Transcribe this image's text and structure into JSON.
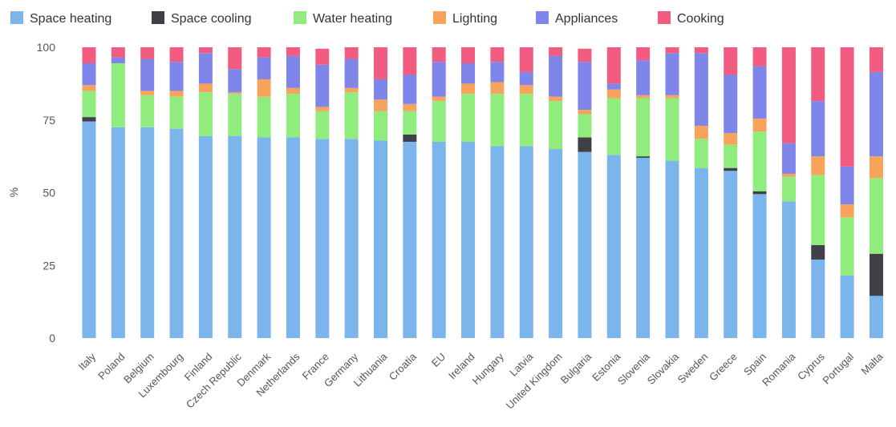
{
  "chart_data": {
    "type": "bar",
    "stacked": true,
    "ylabel": "%",
    "ylim": [
      0,
      100
    ],
    "yticks": [
      0,
      25,
      50,
      75,
      100
    ],
    "grid": false,
    "legend_position": "top",
    "categories": [
      "Italy",
      "Poland",
      "Belgium",
      "Luxembourg",
      "Finland",
      "Czech Republic",
      "Denmark",
      "Netherlands",
      "France",
      "Germany",
      "Lithuania",
      "Croatia",
      "EU",
      "Ireland",
      "Hungary",
      "Latvia",
      "United Kingdom",
      "Bulgaria",
      "Estonia",
      "Slovenia",
      "Slovakia",
      "Sweden",
      "Greece",
      "Spain",
      "Romania",
      "Cyprus",
      "Portugal",
      "Malta"
    ],
    "series": [
      {
        "name": "Space heating",
        "color": "#7cb4ec",
        "values": [
          74.5,
          72.5,
          72.5,
          72,
          69.5,
          69.5,
          69,
          69,
          68.5,
          68.5,
          68,
          67.5,
          67.5,
          67.5,
          66,
          66,
          65,
          64,
          63,
          62,
          61,
          58.5,
          57.5,
          49.5,
          47,
          27,
          21.5,
          14.5
        ]
      },
      {
        "name": "Space cooling",
        "color": "#404048",
        "values": [
          1.5,
          0,
          0,
          0,
          0,
          0,
          0,
          0,
          0,
          0,
          0,
          2.5,
          0,
          0,
          0,
          0,
          0,
          5,
          0,
          0.5,
          0,
          0,
          1,
          1,
          0,
          5,
          0,
          14.5
        ]
      },
      {
        "name": "Water heating",
        "color": "#90ed7d",
        "values": [
          9,
          22,
          11,
          11,
          15,
          14.5,
          14,
          15,
          9.5,
          16,
          10,
          8,
          14,
          16.5,
          18,
          18,
          16.5,
          8,
          19.5,
          20,
          21.5,
          10,
          8,
          20.5,
          8.5,
          24,
          20,
          26
        ]
      },
      {
        "name": "Lighting",
        "color": "#f7a35c",
        "values": [
          2,
          0,
          1.5,
          2,
          3,
          0.5,
          6,
          2,
          1.5,
          1.5,
          4,
          2.5,
          1.5,
          3.5,
          4,
          3,
          1.5,
          1.5,
          3,
          1,
          1,
          4.5,
          4,
          4.5,
          1,
          6.5,
          4.5,
          7.5
        ]
      },
      {
        "name": "Appliances",
        "color": "#8085e9",
        "values": [
          7.5,
          2,
          11,
          10,
          10.5,
          8,
          7.5,
          11,
          14.5,
          10,
          7,
          10,
          12,
          7,
          7,
          4.5,
          14,
          16.5,
          2,
          12,
          14.5,
          25,
          20,
          18,
          10.5,
          19,
          13,
          29
        ]
      },
      {
        "name": "Cooking",
        "color": "#f15c80",
        "values": [
          5.5,
          3.5,
          4,
          5,
          2,
          7.5,
          3.5,
          3,
          5.5,
          4,
          11,
          9.5,
          5,
          5.5,
          5,
          8.5,
          3,
          4.5,
          12.5,
          4.5,
          2,
          2,
          9.5,
          6.5,
          33,
          18.5,
          41,
          8.5
        ]
      }
    ]
  }
}
